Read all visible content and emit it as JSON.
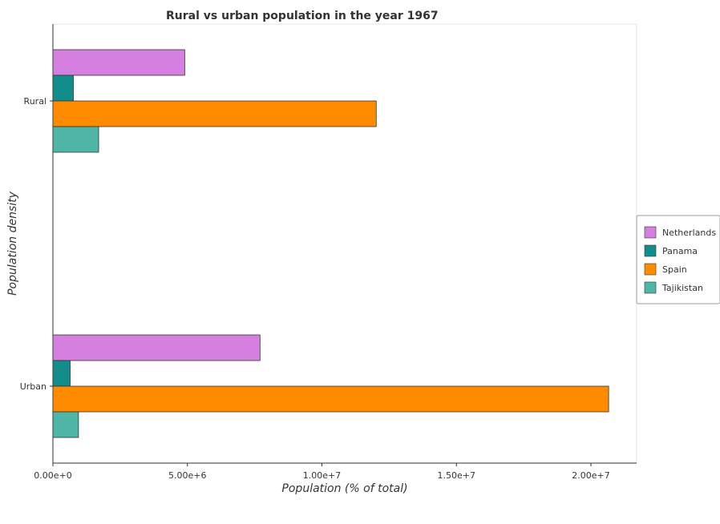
{
  "chart_data": {
    "type": "bar",
    "orientation": "horizontal",
    "title": "Rural vs urban population in the year 1967",
    "xlabel": "Population (% of total)",
    "ylabel": "Population density",
    "categories": [
      "Rural",
      "Urban"
    ],
    "series": [
      {
        "name": "Netherlands",
        "color": "#d57fe0",
        "values": [
          4900000,
          7700000
        ]
      },
      {
        "name": "Panama",
        "color": "#138c8c",
        "values": [
          760000,
          640000
        ]
      },
      {
        "name": "Spain",
        "color": "#ff8c00",
        "values": [
          12020000,
          20660000
        ]
      },
      {
        "name": "Tajikistan",
        "color": "#4fb6a6",
        "values": [
          1700000,
          950000
        ]
      }
    ],
    "xlim": [
      0,
      21700000
    ],
    "xticks": [
      0,
      5000000,
      10000000,
      15000000,
      20000000
    ],
    "xtick_labels": [
      "0.00e+0",
      "5.00e+6",
      "1.00e+7",
      "1.50e+7",
      "2.00e+7"
    ],
    "grid": false,
    "legend_position": "right"
  }
}
